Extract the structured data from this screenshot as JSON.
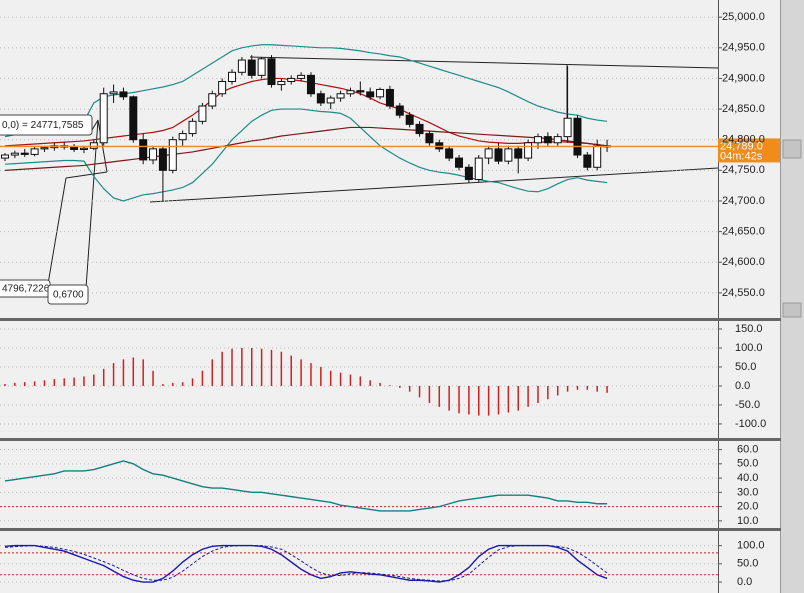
{
  "chart_data": [
    {
      "type": "candlestick",
      "grid": true,
      "ylim": [
        24509,
        25028
      ],
      "yticks": [
        {
          "value": 25000,
          "label": "25,000.0"
        },
        {
          "value": 24950,
          "label": "24,950.0"
        },
        {
          "value": 24900,
          "label": "24,900.0"
        },
        {
          "value": 24850,
          "label": "24,850.0"
        },
        {
          "value": 24800,
          "label": "24,800.0"
        },
        {
          "value": 24750,
          "label": "24,750.0"
        },
        {
          "value": 24700,
          "label": "24,700.0"
        },
        {
          "value": 24650,
          "label": "24,650.0"
        },
        {
          "value": 24600,
          "label": "24,600.0"
        },
        {
          "value": 24550,
          "label": "24,550.0"
        }
      ],
      "current_price": {
        "value": 24789,
        "label": "24,789.0"
      },
      "countdown": "04m:42s",
      "annotations": [
        "0,0) = 24771,7585",
        "4796,7226",
        "0,6700"
      ],
      "ohlc": [
        [
          24770,
          24778,
          24765,
          24775
        ],
        [
          24775,
          24782,
          24770,
          24778
        ],
        [
          24778,
          24785,
          24772,
          24776
        ],
        [
          24776,
          24788,
          24773,
          24785
        ],
        [
          24785,
          24790,
          24780,
          24787
        ],
        [
          24787,
          24795,
          24782,
          24790
        ],
        [
          24790,
          24796,
          24784,
          24788
        ],
        [
          24788,
          24793,
          24780,
          24784
        ],
        [
          24784,
          24790,
          24778,
          24786
        ],
        [
          24786,
          24800,
          24783,
          24795
        ],
        [
          24795,
          24885,
          24790,
          24875
        ],
        [
          24875,
          24890,
          24860,
          24878
        ],
        [
          24878,
          24885,
          24865,
          24870
        ],
        [
          24870,
          24872,
          24795,
          24800
        ],
        [
          24800,
          24810,
          24760,
          24767
        ],
        [
          24767,
          24790,
          24760,
          24785
        ],
        [
          24785,
          24790,
          24700,
          24750
        ],
        [
          24750,
          24805,
          24745,
          24800
        ],
        [
          24800,
          24815,
          24790,
          24810
        ],
        [
          24810,
          24835,
          24805,
          24830
        ],
        [
          24830,
          24860,
          24825,
          24855
        ],
        [
          24855,
          24880,
          24850,
          24875
        ],
        [
          24875,
          24900,
          24870,
          24895
        ],
        [
          24895,
          24915,
          24890,
          24910
        ],
        [
          24910,
          24935,
          24905,
          24930
        ],
        [
          24930,
          24938,
          24900,
          24905
        ],
        [
          24905,
          24935,
          24900,
          24932
        ],
        [
          24932,
          24938,
          24885,
          24890
        ],
        [
          24890,
          24900,
          24880,
          24895
        ],
        [
          24895,
          24905,
          24890,
          24900
        ],
        [
          24900,
          24910,
          24895,
          24905
        ],
        [
          24905,
          24910,
          24870,
          24875
        ],
        [
          24875,
          24880,
          24855,
          24860
        ],
        [
          24860,
          24872,
          24850,
          24868
        ],
        [
          24868,
          24880,
          24862,
          24875
        ],
        [
          24875,
          24885,
          24870,
          24880
        ],
        [
          24880,
          24895,
          24872,
          24878
        ],
        [
          24878,
          24885,
          24865,
          24870
        ],
        [
          24870,
          24885,
          24866,
          24882
        ],
        [
          24882,
          24888,
          24850,
          24855
        ],
        [
          24855,
          24860,
          24835,
          24840
        ],
        [
          24840,
          24845,
          24820,
          24825
        ],
        [
          24825,
          24830,
          24805,
          24810
        ],
        [
          24810,
          24815,
          24790,
          24795
        ],
        [
          24795,
          24800,
          24780,
          24785
        ],
        [
          24785,
          24790,
          24765,
          24770
        ],
        [
          24770,
          24775,
          24750,
          24755
        ],
        [
          24755,
          24760,
          24730,
          24735
        ],
        [
          24735,
          24775,
          24730,
          24770
        ],
        [
          24770,
          24790,
          24760,
          24785
        ],
        [
          24785,
          24795,
          24760,
          24765
        ],
        [
          24765,
          24790,
          24760,
          24785
        ],
        [
          24785,
          24790,
          24745,
          24770
        ],
        [
          24770,
          24800,
          24765,
          24795
        ],
        [
          24795,
          24810,
          24785,
          24805
        ],
        [
          24805,
          24812,
          24790,
          24795
        ],
        [
          24795,
          24810,
          24790,
          24805
        ],
        [
          24805,
          24920,
          24795,
          24835
        ],
        [
          24835,
          24840,
          24770,
          24775
        ],
        [
          24775,
          24780,
          24750,
          24755
        ],
        [
          24755,
          24800,
          24750,
          24790
        ],
        [
          24790,
          24800,
          24780,
          24789
        ]
      ],
      "series": [
        {
          "color": "#1f8a8a",
          "values": [
            24805,
            24808,
            24811,
            24814,
            24817,
            24820,
            24823,
            24826,
            24830,
            24860,
            24870,
            24873,
            24875,
            24877,
            24880,
            24883,
            24886,
            24890,
            24895,
            24905,
            24915,
            24925,
            24935,
            24945,
            24950,
            24953,
            24955,
            24955,
            24954,
            24953,
            24952,
            24951,
            24950,
            24950,
            24949,
            24947,
            24945,
            24942,
            24940,
            24937,
            24935,
            24930,
            24925,
            24920,
            24915,
            24910,
            24905,
            24900,
            24895,
            24890,
            24885,
            24878,
            24870,
            24862,
            24855,
            24850,
            24845,
            24842,
            24840,
            24835,
            24832,
            24830
          ]
        },
        {
          "color": "#1f8a8a",
          "values": [
            24760,
            24761,
            24762,
            24763,
            24764,
            24765,
            24766,
            24766,
            24765,
            24740,
            24720,
            24705,
            24700,
            24705,
            24710,
            24712,
            24715,
            24718,
            24722,
            24730,
            24745,
            24760,
            24780,
            24800,
            24815,
            24830,
            24840,
            24848,
            24850,
            24850,
            24850,
            24848,
            24846,
            24845,
            24843,
            24835,
            24820,
            24805,
            24790,
            24780,
            24770,
            24762,
            24755,
            24750,
            24747,
            24745,
            24742,
            24738,
            24735,
            24732,
            24730,
            24725,
            24720,
            24716,
            24715,
            24720,
            24728,
            24735,
            24738,
            24734,
            24732,
            24730
          ]
        },
        {
          "color": "#b01010",
          "values": [
            24790,
            24791,
            24792,
            24793,
            24794,
            24795,
            24796,
            24797,
            24798,
            24800,
            24802,
            24804,
            24806,
            24808,
            24810,
            24812,
            24815,
            24820,
            24830,
            24840,
            24852,
            24865,
            24878,
            24885,
            24890,
            24895,
            24898,
            24900,
            24900,
            24898,
            24896,
            24893,
            24890,
            24887,
            24884,
            24880,
            24875,
            24868,
            24860,
            24855,
            24850,
            24842,
            24835,
            24828,
            24820,
            24812,
            24806,
            24802,
            24798,
            24796,
            24795,
            24794,
            24794,
            24795,
            24796,
            24796,
            24797,
            24796,
            24795,
            24794,
            24792,
            24790
          ]
        },
        {
          "color": "#7a1a1a",
          "values": [
            24750,
            24751,
            24752,
            24753,
            24754,
            24755,
            24756,
            24757,
            24758,
            24760,
            24762,
            24764,
            24766,
            24768,
            24770,
            24772,
            24774,
            24776,
            24778,
            24780,
            24783,
            24786,
            24789,
            24792,
            24795,
            24798,
            24800,
            24803,
            24806,
            24808,
            24810,
            24812,
            24814,
            24816,
            24818,
            24820,
            24820,
            24820,
            24819,
            24818,
            24817,
            24816,
            24815,
            24814,
            24813,
            24812,
            24811,
            24810,
            24809,
            24808,
            24807,
            24806,
            24805,
            24804,
            24803,
            24802,
            24800,
            24798,
            24796,
            24794,
            24792,
            24790
          ]
        }
      ]
    },
    {
      "type": "bar",
      "color": "#d02020",
      "grid": true,
      "ylim": [
        -137,
        171
      ],
      "yticks": [
        {
          "value": 150,
          "label": "150.0"
        },
        {
          "value": 100,
          "label": "100.0"
        },
        {
          "value": 50,
          "label": "50.0"
        },
        {
          "value": 0,
          "label": "0.0"
        },
        {
          "value": -50,
          "label": "-50.0"
        },
        {
          "value": -100,
          "label": "-100.0"
        }
      ],
      "values": [
        5,
        8,
        10,
        12,
        15,
        18,
        20,
        22,
        25,
        30,
        45,
        60,
        70,
        75,
        70,
        40,
        5,
        8,
        10,
        20,
        40,
        70,
        90,
        98,
        100,
        100,
        98,
        95,
        90,
        80,
        70,
        60,
        50,
        40,
        35,
        30,
        25,
        15,
        8,
        2,
        -5,
        -15,
        -30,
        -45,
        -55,
        -65,
        -72,
        -75,
        -78,
        -78,
        -75,
        -70,
        -65,
        -55,
        -45,
        -35,
        -25,
        -15,
        -10,
        -10,
        -15,
        -18
      ]
    },
    {
      "type": "line",
      "grid": true,
      "ylim": [
        5,
        66
      ],
      "yticks": [
        {
          "value": 60,
          "label": "60.0"
        },
        {
          "value": 50,
          "label": "50.0"
        },
        {
          "value": 40,
          "label": "40.0"
        },
        {
          "value": 30,
          "label": "30.0"
        },
        {
          "value": 20,
          "label": "20.0"
        },
        {
          "value": 10,
          "label": "10.0"
        }
      ],
      "hlines": [
        20
      ],
      "series": [
        {
          "color": "#138080",
          "values": [
            38,
            39,
            40,
            41,
            42,
            43,
            45,
            45,
            45,
            46,
            48,
            50,
            52,
            50,
            46,
            43,
            42,
            40,
            38,
            36,
            34,
            33,
            33,
            32,
            31,
            30,
            30,
            29,
            28,
            27,
            26,
            25,
            24,
            23,
            21,
            20,
            19,
            18,
            17,
            17,
            17,
            17,
            18,
            19,
            20,
            22,
            24,
            25,
            26,
            27,
            28,
            28,
            28,
            28,
            27,
            26,
            24,
            24,
            23,
            23,
            22,
            22
          ]
        }
      ]
    },
    {
      "type": "line",
      "grid": true,
      "ylim": [
        -30,
        140
      ],
      "yticks": [
        {
          "value": 100,
          "label": "100.0"
        },
        {
          "value": 50,
          "label": "50.0"
        },
        {
          "value": 0,
          "label": "0.0"
        }
      ],
      "hlines": [
        80,
        20
      ],
      "series": [
        {
          "color": "#1a1aa8",
          "dash": false,
          "values": [
            98,
            100,
            100,
            100,
            95,
            90,
            85,
            75,
            65,
            55,
            45,
            30,
            15,
            5,
            0,
            0,
            10,
            30,
            55,
            75,
            90,
            98,
            100,
            100,
            100,
            100,
            98,
            90,
            75,
            55,
            35,
            20,
            10,
            15,
            25,
            28,
            25,
            22,
            20,
            15,
            10,
            5,
            5,
            3,
            0,
            5,
            20,
            40,
            70,
            90,
            100,
            100,
            100,
            100,
            100,
            100,
            95,
            85,
            60,
            40,
            20,
            10
          ]
        },
        {
          "color": "#1a1aa8",
          "dash": true,
          "values": [
            95,
            97,
            99,
            100,
            98,
            95,
            90,
            84,
            76,
            66,
            56,
            45,
            32,
            20,
            10,
            5,
            5,
            13,
            30,
            50,
            70,
            85,
            95,
            99,
            100,
            100,
            100,
            96,
            90,
            75,
            58,
            40,
            25,
            18,
            18,
            23,
            26,
            25,
            22,
            19,
            15,
            10,
            7,
            5,
            3,
            4,
            10,
            22,
            45,
            68,
            88,
            97,
            100,
            100,
            100,
            100,
            98,
            93,
            82,
            65,
            45,
            25
          ]
        }
      ]
    }
  ]
}
